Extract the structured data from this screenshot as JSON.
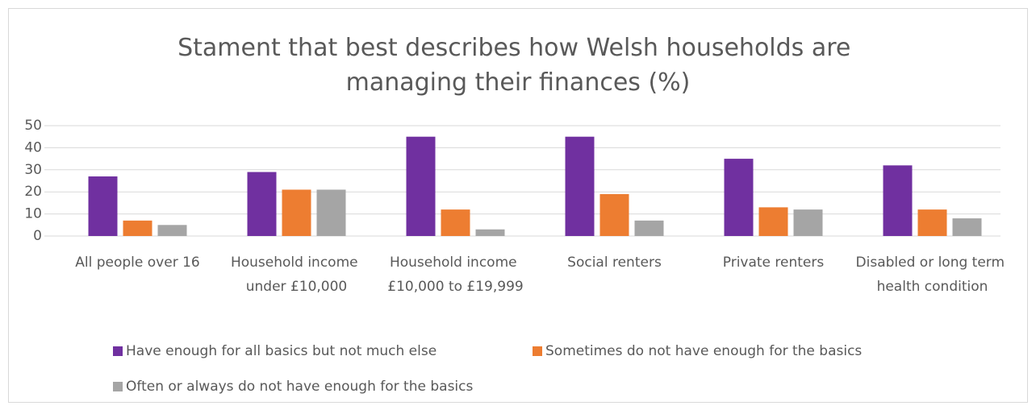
{
  "chart_data": {
    "type": "bar",
    "title": "Stament that best describes how Welsh households are managing their finances (%)",
    "categories": [
      "All people over 16",
      "Household income under £10,000",
      "Household income £10,000 to £19,999",
      "Social renters",
      "Private renters",
      "Disabled or long term health condition"
    ],
    "series": [
      {
        "name": "Have enough for all basics but not much else",
        "color": "#7030a0",
        "values": [
          27,
          29,
          45,
          45,
          35,
          32
        ]
      },
      {
        "name": "Sometimes do not have enough for the basics",
        "color": "#ed7d31",
        "values": [
          7,
          21,
          12,
          19,
          13,
          12
        ]
      },
      {
        "name": "Often or always do not have enough for the basics",
        "color": "#a5a5a5",
        "values": [
          5,
          21,
          3,
          7,
          12,
          8
        ]
      }
    ],
    "ylim": [
      0,
      50
    ],
    "yticks": [
      0,
      10,
      20,
      30,
      40,
      50
    ],
    "grid": true,
    "legend": "bottom"
  }
}
